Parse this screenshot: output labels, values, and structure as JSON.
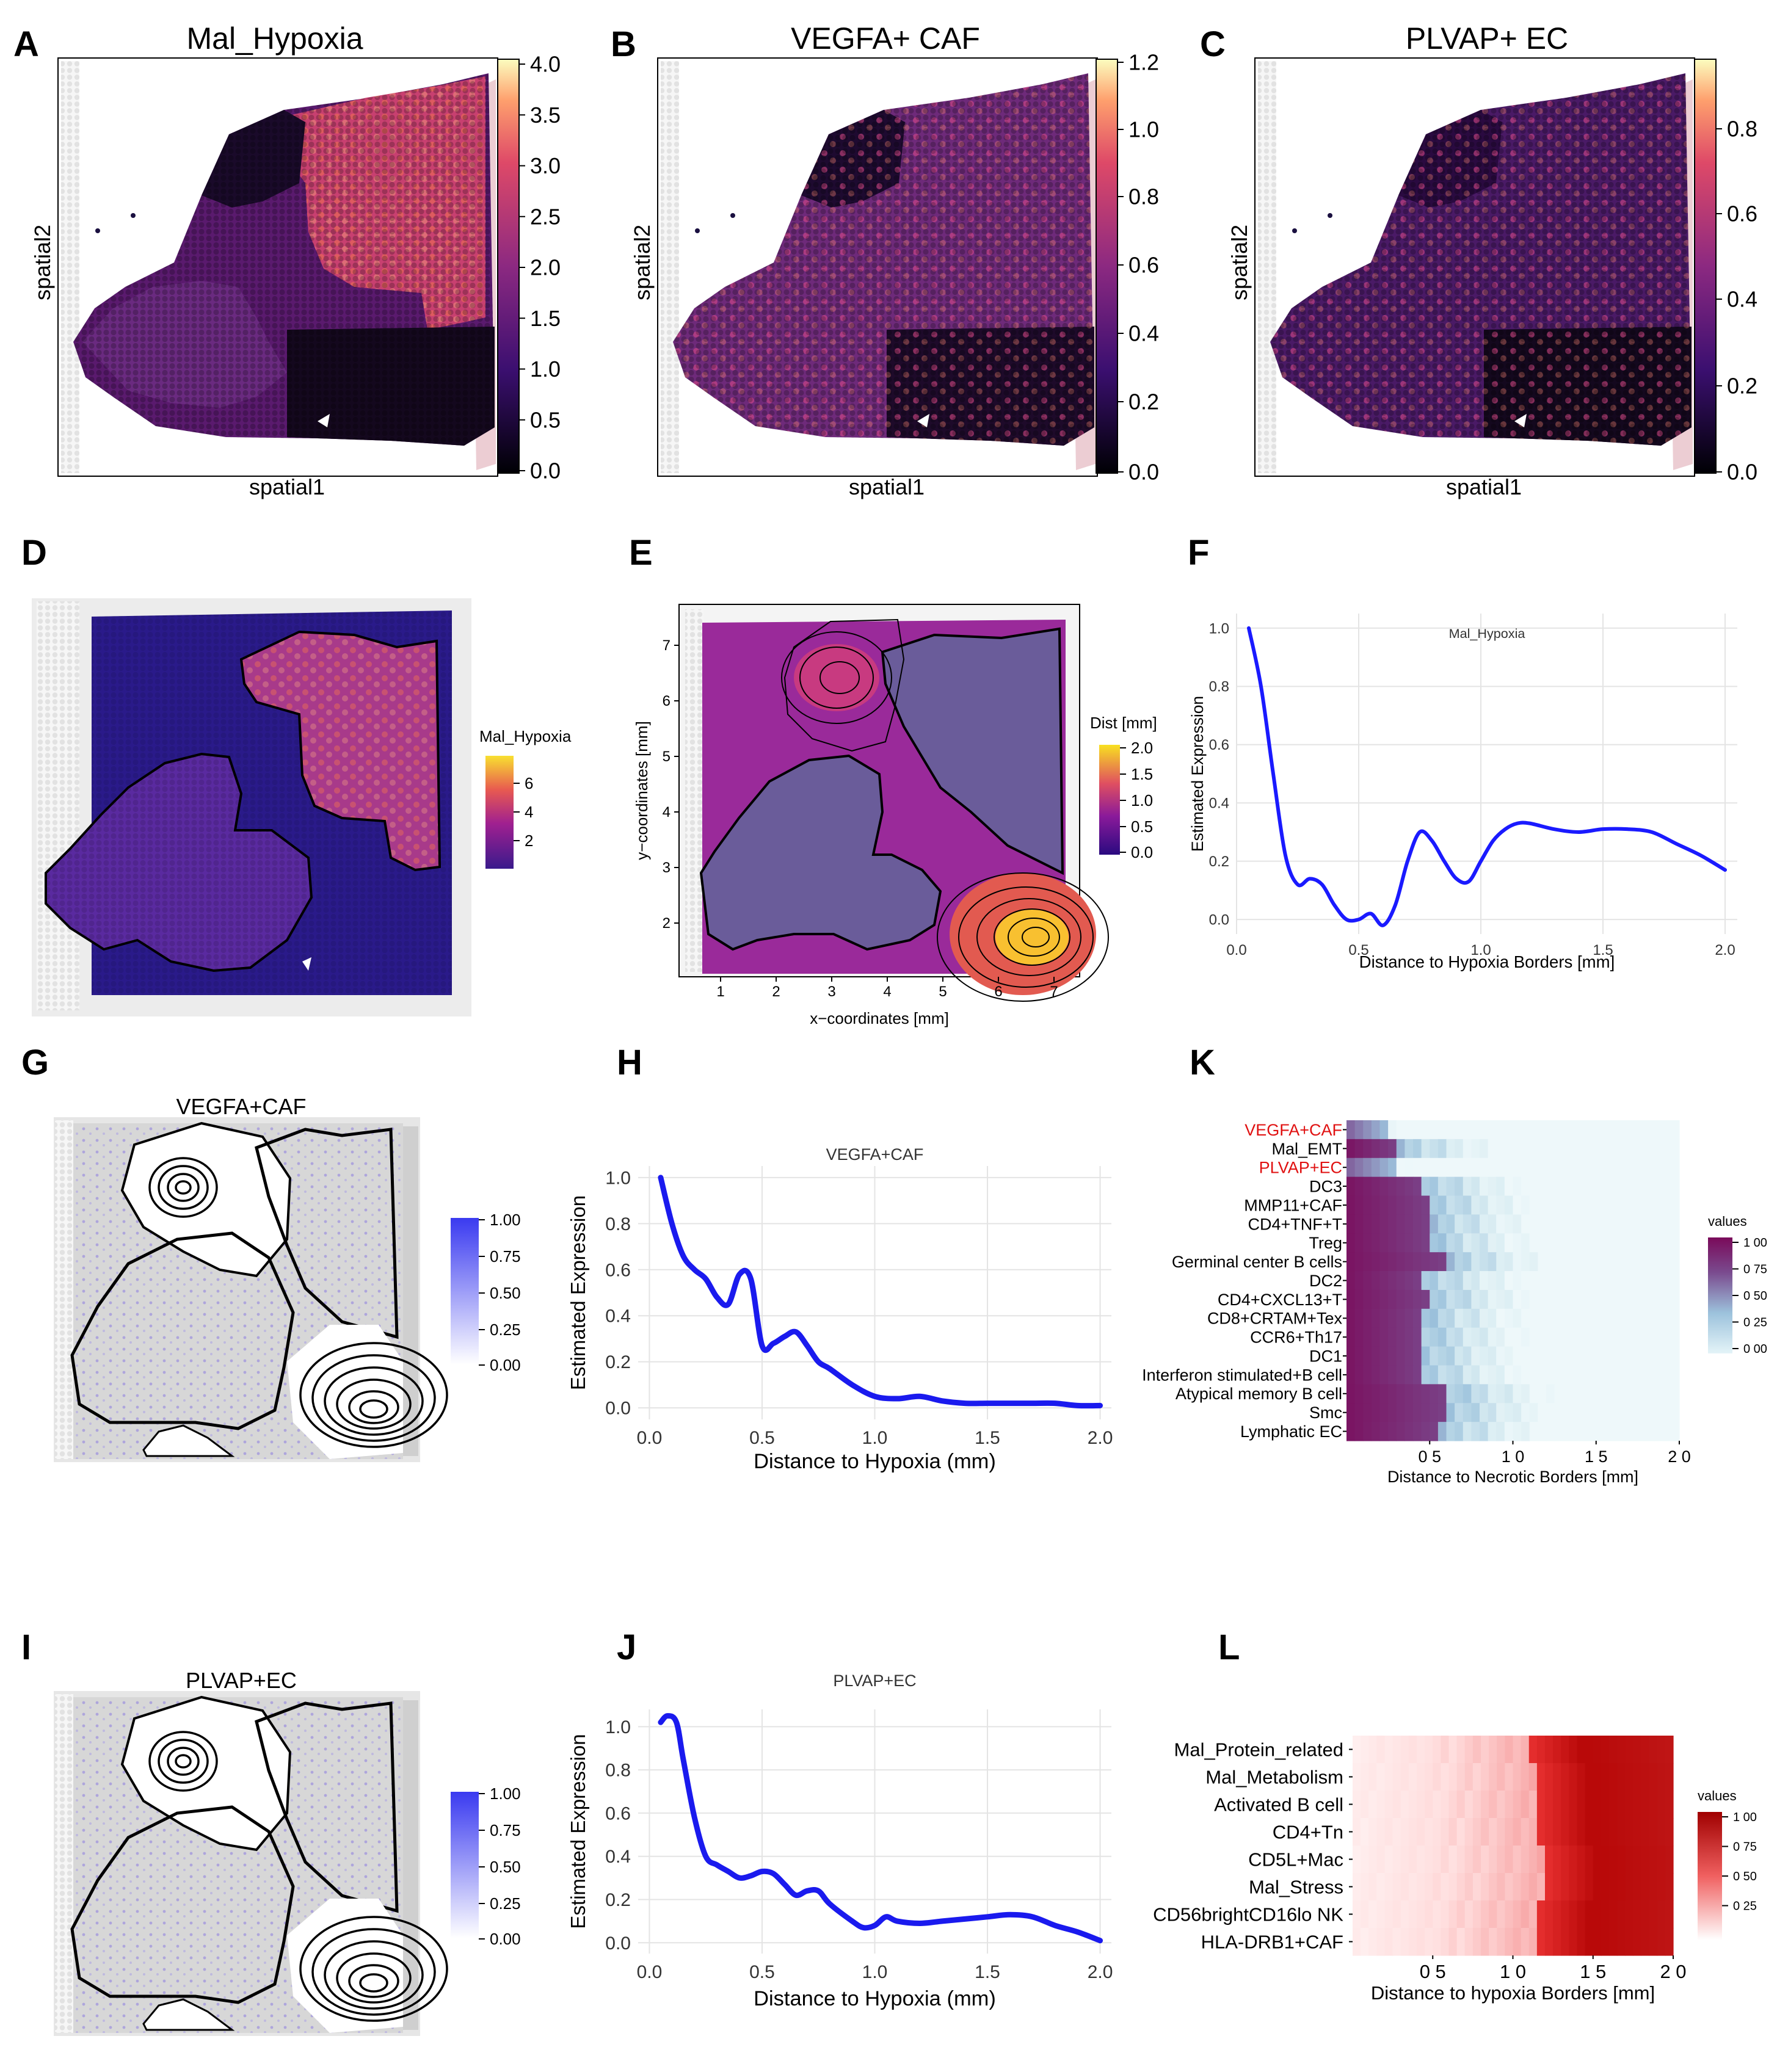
{
  "panels": {
    "A": {
      "letter": "A",
      "title": "Mal_Hypoxia",
      "xlabel": "spatial1",
      "ylabel": "spatial2",
      "ticks": [
        "4.0",
        "3.5",
        "3.0",
        "2.5",
        "2.0",
        "1.5",
        "1.0",
        "0.5",
        "0.0"
      ]
    },
    "B": {
      "letter": "B",
      "title": "VEGFA+ CAF",
      "xlabel": "spatial1",
      "ylabel": "spatial2",
      "ticks": [
        "1.2",
        "1.0",
        "0.8",
        "0.6",
        "0.4",
        "0.2",
        "0.0"
      ]
    },
    "C": {
      "letter": "C",
      "title": "PLVAP+ EC",
      "xlabel": "spatial1",
      "ylabel": "spatial2",
      "ticks": [
        "0.8",
        "0.6",
        "0.4",
        "0.2",
        "0.0"
      ]
    },
    "D": {
      "letter": "D",
      "legend_title": "Mal_Hypoxia",
      "ticks": [
        "6",
        "4",
        "2"
      ]
    },
    "E": {
      "letter": "E",
      "legend_title": "Dist [mm]",
      "ticks": [
        "2.0",
        "1.5",
        "1.0",
        "0.5",
        "0.0"
      ],
      "xlabel": "x−coordinates [mm]",
      "ylabel": "y−coordinates [mm]",
      "xticks": [
        "1",
        "2",
        "3",
        "4",
        "5",
        "6",
        "7"
      ],
      "yticks": [
        "2",
        "3",
        "4",
        "5",
        "6",
        "7"
      ]
    },
    "G": {
      "letter": "G",
      "title": "VEGFA+CAF",
      "ticks": [
        "1.00",
        "0.75",
        "0.50",
        "0.25",
        "0.00"
      ]
    },
    "I": {
      "letter": "I",
      "title": "PLVAP+EC",
      "ticks": [
        "1.00",
        "0.75",
        "0.50",
        "0.25",
        "0.00"
      ]
    },
    "K": {
      "letter": "K",
      "legend_title": "values",
      "ticks": [
        "1 00",
        "0 75",
        "0 50",
        "0 25",
        "0 00"
      ],
      "xlabel": "Distance to Necrotic Borders [mm]",
      "xticks": [
        "0 5",
        "1 0",
        "1 5",
        "2 0"
      ]
    },
    "L": {
      "letter": "L",
      "legend_title": "values",
      "ticks": [
        "1 00",
        "0 75",
        "0 50",
        "0 25"
      ],
      "xlabel": "Distance to hypoxia Borders [mm]",
      "xticks": [
        "0 5",
        "1 0",
        "1 5",
        "2 0"
      ]
    }
  },
  "chart_data": [
    {
      "id": "F",
      "letter": "F",
      "type": "line",
      "style": "thin",
      "title": "Mal_Hypoxia",
      "xlabel": "Distance to Hypoxia Borders [mm]",
      "ylabel": "Estimated Expression",
      "xlim": [
        0,
        2.05
      ],
      "ylim": [
        -0.05,
        1.05
      ],
      "xticks": [
        0.0,
        0.5,
        1.0,
        1.5,
        2.0
      ],
      "xtick_labels": [
        "0.0",
        "0.5",
        "1.0",
        "1.5",
        "2.0"
      ],
      "yticks": [
        0.0,
        0.2,
        0.4,
        0.6,
        0.8,
        1.0
      ],
      "ytick_labels": [
        "0.0",
        "0.2",
        "0.4",
        "0.6",
        "0.8",
        "1.0"
      ],
      "series": [
        {
          "name": "Mal_Hypoxia",
          "color": "#1a1aff",
          "x": [
            0.05,
            0.1,
            0.15,
            0.2,
            0.25,
            0.3,
            0.35,
            0.4,
            0.45,
            0.5,
            0.55,
            0.6,
            0.65,
            0.7,
            0.75,
            0.8,
            0.85,
            0.9,
            0.95,
            1.0,
            1.05,
            1.1,
            1.15,
            1.2,
            1.3,
            1.4,
            1.5,
            1.6,
            1.7,
            1.8,
            1.9,
            2.0
          ],
          "y": [
            1.0,
            0.8,
            0.5,
            0.22,
            0.12,
            0.14,
            0.12,
            0.05,
            0.0,
            0.0,
            0.02,
            -0.02,
            0.05,
            0.2,
            0.3,
            0.27,
            0.2,
            0.14,
            0.13,
            0.2,
            0.27,
            0.31,
            0.33,
            0.33,
            0.31,
            0.3,
            0.31,
            0.31,
            0.3,
            0.26,
            0.22,
            0.17
          ]
        }
      ]
    },
    {
      "id": "H",
      "letter": "H",
      "type": "line",
      "style": "bold",
      "title": "VEGFA+CAF",
      "xlabel": "Distance to Hypoxia (mm)",
      "ylabel": "Estimated Expression",
      "xlim": [
        -0.05,
        2.05
      ],
      "ylim": [
        -0.05,
        1.05
      ],
      "xticks": [
        0.0,
        0.5,
        1.0,
        1.5,
        2.0
      ],
      "xtick_labels": [
        "0.0",
        "0.5",
        "1.0",
        "1.5",
        "2.0"
      ],
      "yticks": [
        0.0,
        0.2,
        0.4,
        0.6,
        0.8,
        1.0
      ],
      "ytick_labels": [
        "0.0",
        "0.2",
        "0.4",
        "0.6",
        "0.8",
        "1.0"
      ],
      "series": [
        {
          "name": "VEGFA+CAF",
          "color": "#1a1aee",
          "x": [
            0.05,
            0.1,
            0.15,
            0.2,
            0.25,
            0.3,
            0.35,
            0.4,
            0.45,
            0.5,
            0.55,
            0.6,
            0.65,
            0.7,
            0.75,
            0.8,
            0.9,
            1.0,
            1.1,
            1.2,
            1.3,
            1.4,
            1.5,
            1.6,
            1.7,
            1.8,
            1.9,
            2.0
          ],
          "y": [
            1.0,
            0.8,
            0.66,
            0.6,
            0.56,
            0.48,
            0.45,
            0.58,
            0.56,
            0.27,
            0.28,
            0.31,
            0.33,
            0.27,
            0.2,
            0.17,
            0.1,
            0.05,
            0.04,
            0.05,
            0.03,
            0.02,
            0.02,
            0.02,
            0.02,
            0.02,
            0.01,
            0.01
          ]
        }
      ]
    },
    {
      "id": "J",
      "letter": "J",
      "type": "line",
      "style": "bold",
      "title": "PLVAP+EC",
      "xlabel": "Distance to Hypoxia (mm)",
      "ylabel": "Estimated Expression",
      "xlim": [
        -0.05,
        2.05
      ],
      "ylim": [
        -0.05,
        1.08
      ],
      "xticks": [
        0.0,
        0.5,
        1.0,
        1.5,
        2.0
      ],
      "xtick_labels": [
        "0.0",
        "0.5",
        "1.0",
        "1.5",
        "2.0"
      ],
      "yticks": [
        0.0,
        0.2,
        0.4,
        0.6,
        0.8,
        1.0
      ],
      "ytick_labels": [
        "0.0",
        "0.2",
        "0.4",
        "0.6",
        "0.8",
        "1.0"
      ],
      "series": [
        {
          "name": "PLVAP+EC",
          "color": "#1a1aee",
          "x": [
            0.05,
            0.08,
            0.12,
            0.15,
            0.2,
            0.25,
            0.3,
            0.35,
            0.4,
            0.45,
            0.5,
            0.55,
            0.6,
            0.65,
            0.7,
            0.75,
            0.8,
            0.9,
            0.95,
            1.0,
            1.05,
            1.1,
            1.2,
            1.3,
            1.4,
            1.5,
            1.6,
            1.7,
            1.8,
            1.9,
            2.0
          ],
          "y": [
            1.02,
            1.05,
            1.02,
            0.85,
            0.58,
            0.4,
            0.36,
            0.33,
            0.3,
            0.31,
            0.33,
            0.32,
            0.27,
            0.22,
            0.24,
            0.24,
            0.18,
            0.1,
            0.07,
            0.08,
            0.12,
            0.1,
            0.09,
            0.1,
            0.11,
            0.12,
            0.13,
            0.12,
            0.08,
            0.05,
            0.01
          ]
        }
      ]
    },
    {
      "id": "K",
      "letter": "K",
      "type": "heatmap",
      "palette": "purple",
      "title": "",
      "xlabel": "Distance to Necrotic Borders [mm]",
      "xlim": [
        0,
        2.0
      ],
      "x_tick_labels": [
        "0 5",
        "1 0",
        "1 5",
        "2 0"
      ],
      "rows": [
        "VEGFA+CAF",
        "Mal_EMT",
        "PLVAP+EC",
        "DC3",
        "MMP11+CAF",
        "CD4+TNF+T",
        "Treg",
        "Germinal center B cells",
        "DC2",
        "CD4+CXCL13+T",
        "CD8+CRTAM+Tex",
        "CCR6+Th17",
        "DC1",
        "Interferon stimulated+B cell",
        "Atypical memory B cell",
        "Smc",
        "Lymphatic EC"
      ],
      "highlight_rows": [
        "VEGFA+CAF",
        "PLVAP+EC"
      ],
      "edge": [
        0.25,
        0.3,
        0.3,
        0.45,
        0.5,
        0.5,
        0.5,
        0.6,
        0.45,
        0.5,
        0.45,
        0.45,
        0.45,
        0.45,
        0.6,
        0.6,
        0.55
      ],
      "legend_ticks": [
        1.0,
        0.75,
        0.5,
        0.25,
        0.0
      ]
    },
    {
      "id": "L",
      "letter": "L",
      "type": "heatmap",
      "palette": "red",
      "title": "",
      "xlabel": "Distance to hypoxia Borders [mm]",
      "xlim": [
        0,
        2.0
      ],
      "x_tick_labels": [
        "0 5",
        "1 0",
        "1 5",
        "2 0"
      ],
      "rows": [
        "Mal_Protein_related",
        "Mal_Metabolism",
        "Activated B cell",
        "CD4+Tn",
        "CD5L+Mac",
        "Mal_Stress",
        "CD56brightCD16lo NK",
        "HLA-DRB1+CAF"
      ],
      "highlight_rows": [],
      "edge": [
        1.1,
        1.15,
        1.15,
        1.15,
        1.2,
        1.2,
        1.15,
        1.15
      ],
      "legend_ticks": [
        1.0,
        0.75,
        0.5,
        0.25
      ]
    }
  ]
}
